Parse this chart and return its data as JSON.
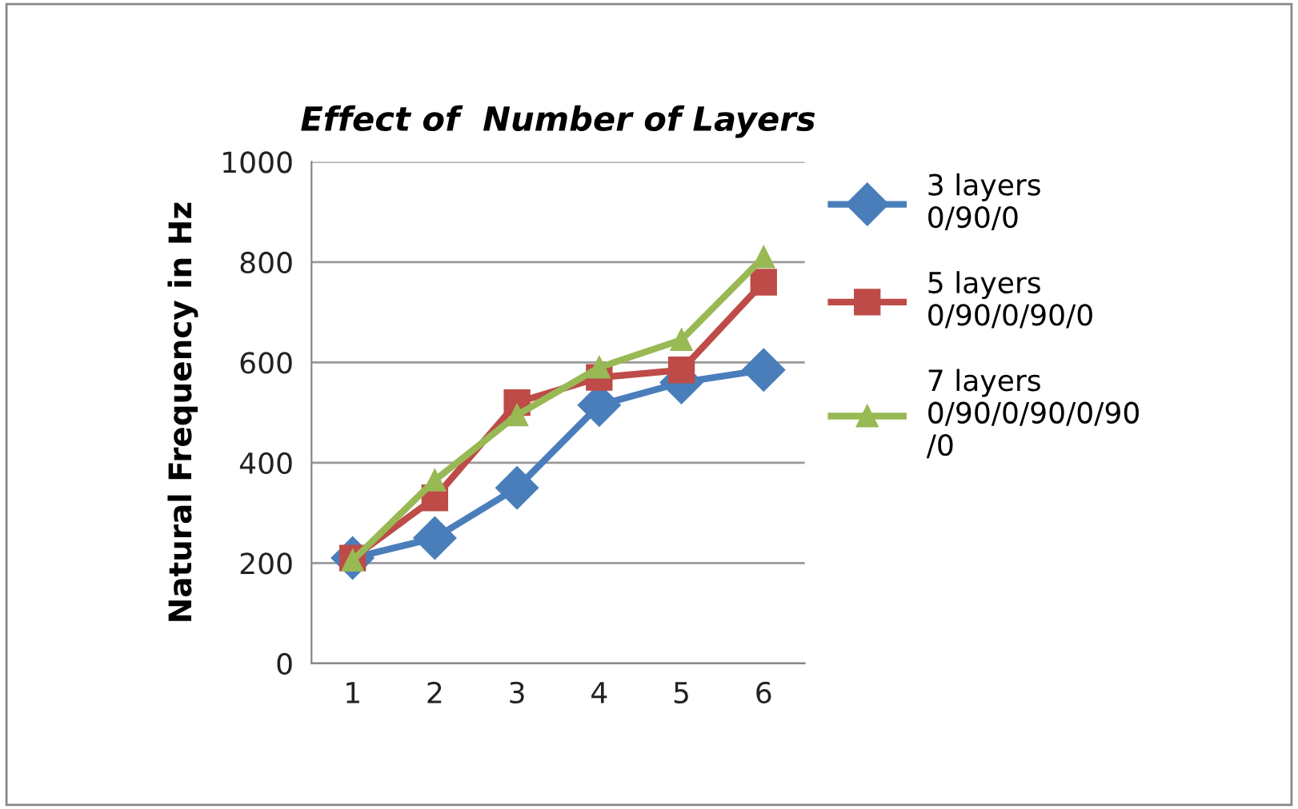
{
  "chart_data": {
    "type": "line",
    "title": "Effect of  Number of Layers",
    "ylabel": "Natural Frequency in Hz",
    "categories": [
      "1",
      "2",
      "3",
      "4",
      "5",
      "6"
    ],
    "series": [
      {
        "name": "3 layers\n0/90/0",
        "color": "#4a7ebb",
        "marker": "diamond",
        "values": [
          210,
          250,
          350,
          515,
          560,
          585
        ]
      },
      {
        "name": "5 layers\n0/90/0/90/0",
        "color": "#be4b48",
        "marker": "square",
        "values": [
          210,
          330,
          520,
          570,
          585,
          760
        ]
      },
      {
        "name": "7 layers\n0/90/0/90/0/90\n/0",
        "color": "#98b954",
        "marker": "triangle",
        "values": [
          205,
          365,
          495,
          590,
          645,
          810
        ]
      }
    ],
    "ylim": [
      0,
      1000
    ],
    "yticks": [
      0,
      200,
      400,
      600,
      800,
      1000
    ],
    "grid": "y",
    "legend": "right",
    "line_style": "solid"
  }
}
